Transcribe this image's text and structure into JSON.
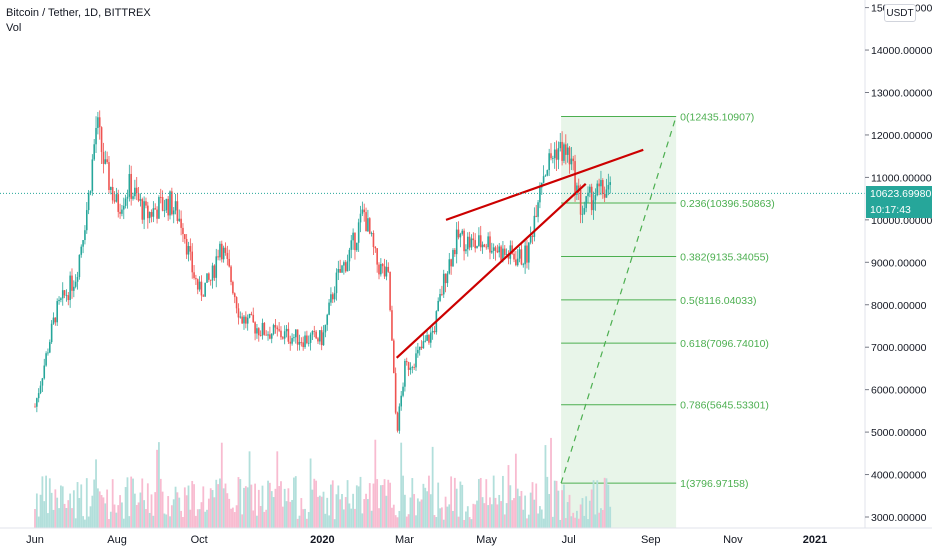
{
  "header": {
    "title": "Bitcoin / Tether, 1D, BITTREX",
    "subtitle": "Vol",
    "currency_badge": "USDT"
  },
  "last_price": {
    "value": "10623.69980",
    "timer": "10:17:43",
    "color": "#26a69a"
  },
  "colors": {
    "up": "#26a69a",
    "down": "#ef5350",
    "up_volume": "#b2dfdb",
    "down_volume": "#f8bbd0",
    "fib_line": "#4caf50",
    "fib_fill": "#e8f5e9",
    "trend_line": "#cc0000",
    "last_price_line": "#26a69a"
  },
  "chart_data": {
    "type": "candlestick",
    "symbol": "Bitcoin / Tether, 1D, BITTREX",
    "indicator": "Vol",
    "ylim": [
      2750,
      15000
    ],
    "y_ticks": [
      "3000.00000",
      "4000.00000",
      "5000.00000",
      "6000.00000",
      "7000.00000",
      "8000.00000",
      "9000.00000",
      "10000.00000",
      "11000.00000",
      "12000.00000",
      "13000.00000",
      "14000.00000",
      "15000.00000"
    ],
    "x_labels": [
      "Jun",
      "Aug",
      "Oct",
      "2020",
      "Mar",
      "May",
      "Jul",
      "Sep",
      "Nov",
      "2021"
    ],
    "last_price": 10623.6998,
    "close_path": [
      {
        "month": 0.0,
        "price": 5600
      },
      {
        "month": 0.5,
        "price": 7800
      },
      {
        "month": 1.0,
        "price": 8700
      },
      {
        "month": 1.3,
        "price": 10500
      },
      {
        "month": 1.5,
        "price": 12300
      },
      {
        "month": 1.7,
        "price": 11200
      },
      {
        "month": 2.0,
        "price": 10300
      },
      {
        "month": 2.3,
        "price": 10800
      },
      {
        "month": 2.7,
        "price": 10100
      },
      {
        "month": 3.0,
        "price": 10300
      },
      {
        "month": 3.3,
        "price": 10400
      },
      {
        "month": 3.6,
        "price": 9900
      },
      {
        "month": 3.8,
        "price": 8900
      },
      {
        "month": 4.0,
        "price": 8300
      },
      {
        "month": 4.3,
        "price": 8600
      },
      {
        "month": 4.5,
        "price": 9500
      },
      {
        "month": 4.8,
        "price": 8500
      },
      {
        "month": 5.0,
        "price": 7700
      },
      {
        "month": 5.5,
        "price": 7400
      },
      {
        "month": 6.0,
        "price": 7300
      },
      {
        "month": 6.5,
        "price": 7200
      },
      {
        "month": 7.0,
        "price": 7200
      },
      {
        "month": 7.3,
        "price": 8500
      },
      {
        "month": 7.7,
        "price": 9300
      },
      {
        "month": 8.0,
        "price": 10200
      },
      {
        "month": 8.3,
        "price": 9000
      },
      {
        "month": 8.6,
        "price": 8600
      },
      {
        "month": 8.8,
        "price": 5000
      },
      {
        "month": 9.0,
        "price": 6500
      },
      {
        "month": 9.3,
        "price": 6800
      },
      {
        "month": 9.7,
        "price": 7400
      },
      {
        "month": 10.0,
        "price": 8800
      },
      {
        "month": 10.3,
        "price": 9600
      },
      {
        "month": 10.7,
        "price": 9400
      },
      {
        "month": 11.0,
        "price": 9500
      },
      {
        "month": 11.4,
        "price": 9200
      },
      {
        "month": 11.8,
        "price": 9100
      },
      {
        "month": 12.0,
        "price": 9200
      },
      {
        "month": 12.3,
        "price": 11000
      },
      {
        "month": 12.7,
        "price": 11700
      },
      {
        "month": 13.0,
        "price": 11500
      },
      {
        "month": 13.3,
        "price": 10200
      },
      {
        "month": 13.6,
        "price": 10600
      },
      {
        "month": 13.9,
        "price": 10700
      },
      {
        "month": 14.0,
        "price": 10620
      }
    ],
    "fib_retracement": {
      "start_month": 12.8,
      "end_month": 15.6,
      "levels": [
        {
          "label": "0(12435.10907)",
          "price": 12435.10907
        },
        {
          "label": "0.236(10396.50863)",
          "price": 10396.50863
        },
        {
          "label": "0.382(9135.34055)",
          "price": 9135.34055
        },
        {
          "label": "0.5(8116.04033)",
          "price": 8116.04033
        },
        {
          "label": "0.618(7096.74010)",
          "price": 7096.7401
        },
        {
          "label": "0.786(5645.53301)",
          "price": 5645.53301
        },
        {
          "label": "1(3796.97158)",
          "price": 3796.97158
        }
      ],
      "diagonal": {
        "from": [
          12.8,
          3796.97158
        ],
        "to": [
          15.6,
          12435.10907
        ]
      }
    },
    "trend_lines": [
      {
        "from": [
          8.8,
          6750
        ],
        "to": [
          13.4,
          10850
        ]
      },
      {
        "from": [
          10.0,
          10000
        ],
        "to": [
          14.8,
          11650
        ]
      }
    ]
  }
}
